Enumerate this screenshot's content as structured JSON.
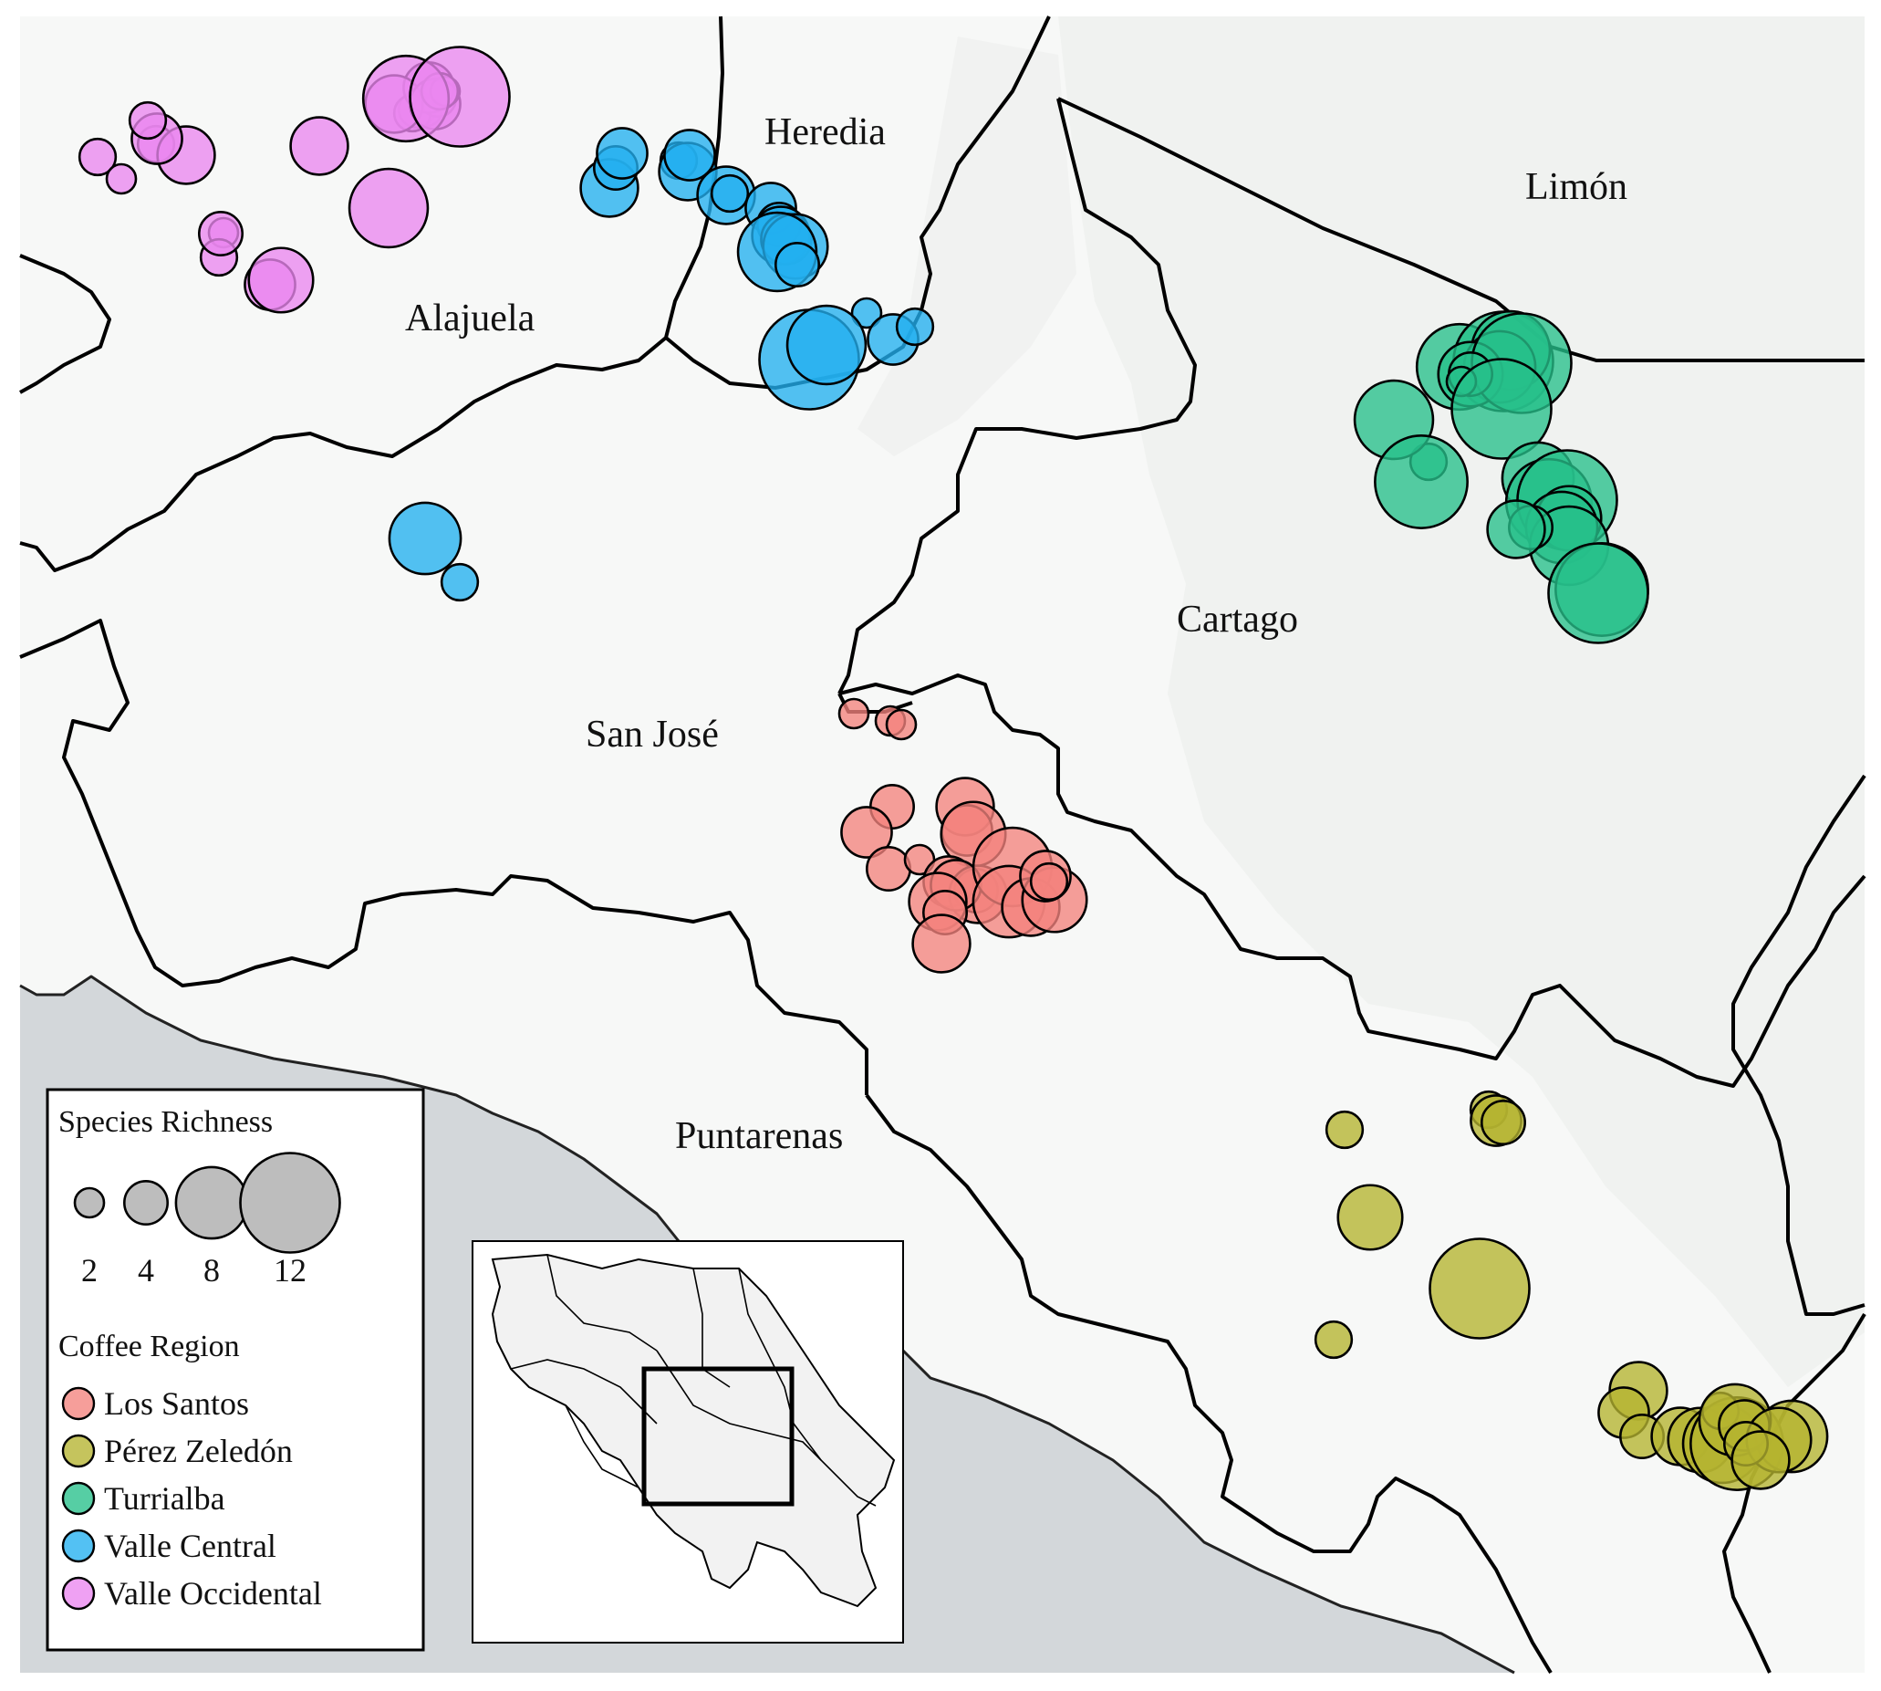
{
  "provinces": [
    {
      "id": "heredia",
      "name": "Heredia"
    },
    {
      "id": "limon",
      "name": "Limón"
    },
    {
      "id": "alajuela",
      "name": "Alajuela"
    },
    {
      "id": "cartago",
      "name": "Cartago"
    },
    {
      "id": "sanjose",
      "name": "San José"
    },
    {
      "id": "puntarenas",
      "name": "Puntarenas"
    }
  ],
  "colors": {
    "Los Santos": "#f4837d",
    "Pérez Zeledón": "#b5b330",
    "Turrialba": "#26c08a",
    "Valle Central": "#22b0f0",
    "Valle Occidental": "#ea86ef",
    "size_sample": "#bdbdbd",
    "land": "#f7f8f7",
    "ocean": "#d3d7da",
    "border": "#000000"
  },
  "legend": {
    "size_title": "Species Richness",
    "sizes": [
      {
        "label": "2",
        "value": 2
      },
      {
        "label": "4",
        "value": 4
      },
      {
        "label": "8",
        "value": 8
      },
      {
        "label": "12",
        "value": 12
      }
    ],
    "region_title": "Coffee Region",
    "regions": [
      "Los Santos",
      "Pérez Zeledón",
      "Turrialba",
      "Valle Central",
      "Valle Occidental"
    ]
  },
  "sites": [
    {
      "region": "Valle Occidental",
      "richness": [
        3,
        2,
        3,
        6,
        5,
        3,
        2,
        3,
        4,
        6,
        5,
        7,
        9,
        3,
        2,
        3,
        3,
        5,
        6,
        5,
        2,
        3,
        10,
        12
      ]
    },
    {
      "region": "Valle Central",
      "richness": [
        6,
        4,
        5,
        3,
        6,
        5,
        6,
        3,
        5,
        4,
        6,
        5,
        7,
        9,
        4,
        2,
        5,
        3,
        12,
        9,
        8,
        3
      ]
    },
    {
      "region": "Los Santos",
      "richness": [
        2,
        2,
        2,
        4,
        5,
        6,
        5,
        7,
        4,
        2,
        5,
        4,
        6,
        5,
        6,
        9,
        8,
        6,
        7,
        5,
        3,
        4,
        6
      ]
    },
    {
      "region": "Turrialba",
      "richness": [
        10,
        12,
        9,
        8,
        7,
        12,
        4,
        2,
        3,
        9,
        11,
        12,
        8,
        10,
        12,
        7,
        8,
        9,
        4,
        6,
        11,
        12
      ]
    },
    {
      "region": "Pérez Zeledón",
      "richness": [
        3,
        5,
        4,
        3,
        7,
        12,
        3,
        6,
        5,
        4,
        6,
        7,
        9,
        11,
        8,
        3,
        8,
        5,
        7,
        4,
        6
      ]
    }
  ]
}
